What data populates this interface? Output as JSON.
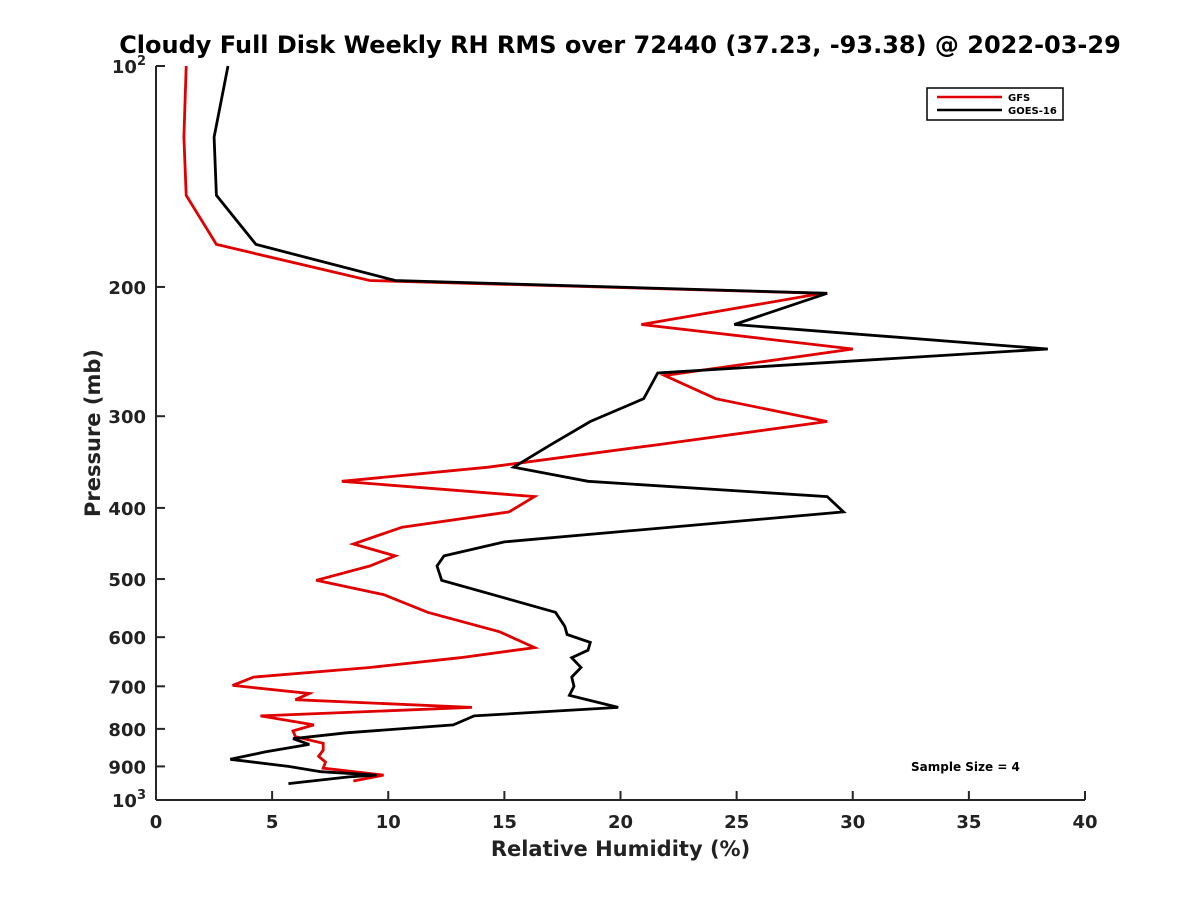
{
  "chart_data": {
    "type": "line",
    "title": "Cloudy Full Disk Weekly RH RMS over 72440 (37.23, -93.38) @ 2022-03-29",
    "xlabel": "Relative Humidity (%)",
    "ylabel": "Pressure (mb)",
    "xlim": [
      0,
      40
    ],
    "ylim": [
      100,
      1000
    ],
    "yscale": "log",
    "y_reversed": true,
    "grid": false,
    "legend_position": "top-right",
    "x_ticks": [
      "0",
      "5",
      "10",
      "15",
      "20",
      "25",
      "30",
      "35",
      "40"
    ],
    "y_ticks": [
      {
        "value": 100,
        "base": "10",
        "exp": "2"
      },
      {
        "value": 200,
        "label": "200"
      },
      {
        "value": 300,
        "label": "300"
      },
      {
        "value": 400,
        "label": "400"
      },
      {
        "value": 500,
        "label": "500"
      },
      {
        "value": 600,
        "label": "600"
      },
      {
        "value": 700,
        "label": "700"
      },
      {
        "value": 800,
        "label": "800"
      },
      {
        "value": 900,
        "label": "900"
      },
      {
        "value": 1000,
        "base": "10",
        "exp": "3"
      }
    ],
    "annotation": "Sample Size = 4",
    "series": [
      {
        "name": "GFS",
        "color": "#e00000",
        "points": [
          [
            1.3,
            100
          ],
          [
            1.2,
            125
          ],
          [
            1.3,
            150
          ],
          [
            2.6,
            175
          ],
          [
            9.2,
            196
          ],
          [
            28.7,
            204
          ],
          [
            20.9,
            225
          ],
          [
            30.0,
            243
          ],
          [
            21.9,
            264
          ],
          [
            24.1,
            284
          ],
          [
            28.9,
            305
          ],
          [
            21.6,
            328
          ],
          [
            14.3,
            352
          ],
          [
            8.0,
            368
          ],
          [
            16.3,
            386
          ],
          [
            15.2,
            405
          ],
          [
            10.6,
            425
          ],
          [
            8.5,
            448
          ],
          [
            10.3,
            465
          ],
          [
            9.2,
            480
          ],
          [
            6.9,
            502
          ],
          [
            9.8,
            525
          ],
          [
            11.7,
            555
          ],
          [
            14.8,
            590
          ],
          [
            16.3,
            620
          ],
          [
            13.1,
            640
          ],
          [
            9.2,
            660
          ],
          [
            4.2,
            680
          ],
          [
            3.3,
            698
          ],
          [
            6.6,
            716
          ],
          [
            6.0,
            730
          ],
          [
            13.6,
            748
          ],
          [
            4.5,
            768
          ],
          [
            6.8,
            790
          ],
          [
            5.9,
            805
          ],
          [
            6.0,
            820
          ],
          [
            7.2,
            837
          ],
          [
            7.2,
            855
          ],
          [
            7.0,
            872
          ],
          [
            7.3,
            888
          ],
          [
            7.2,
            905
          ],
          [
            9.8,
            925
          ],
          [
            8.5,
            942
          ]
        ]
      },
      {
        "name": "GOES-16",
        "color": "#000000",
        "points": [
          [
            3.1,
            100
          ],
          [
            2.5,
            125
          ],
          [
            2.6,
            150
          ],
          [
            4.3,
            175
          ],
          [
            10.3,
            196
          ],
          [
            28.9,
            204
          ],
          [
            24.9,
            225
          ],
          [
            38.4,
            243
          ],
          [
            21.6,
            262
          ],
          [
            21.0,
            284
          ],
          [
            18.7,
            305
          ],
          [
            17.0,
            328
          ],
          [
            15.4,
            352
          ],
          [
            18.6,
            368
          ],
          [
            28.9,
            386
          ],
          [
            29.6,
            405
          ],
          [
            15.0,
            445
          ],
          [
            12.4,
            465
          ],
          [
            12.1,
            480
          ],
          [
            12.3,
            502
          ],
          [
            17.2,
            555
          ],
          [
            17.6,
            580
          ],
          [
            17.7,
            595
          ],
          [
            18.7,
            610
          ],
          [
            18.6,
            625
          ],
          [
            17.9,
            640
          ],
          [
            18.3,
            660
          ],
          [
            17.9,
            680
          ],
          [
            18.0,
            700
          ],
          [
            17.8,
            720
          ],
          [
            19.9,
            748
          ],
          [
            13.7,
            768
          ],
          [
            12.8,
            790
          ],
          [
            8.2,
            810
          ],
          [
            5.9,
            825
          ],
          [
            6.6,
            840
          ],
          [
            4.7,
            860
          ],
          [
            3.2,
            880
          ],
          [
            5.7,
            900
          ],
          [
            7.1,
            915
          ],
          [
            9.5,
            925
          ],
          [
            8.3,
            930
          ],
          [
            5.7,
            950
          ]
        ]
      }
    ]
  }
}
